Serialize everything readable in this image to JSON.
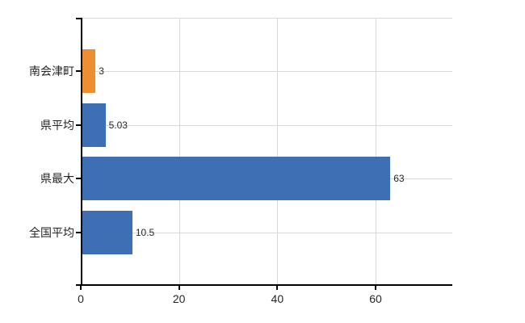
{
  "chart_data": {
    "type": "bar",
    "orientation": "horizontal",
    "title": "",
    "xlabel": "",
    "ylabel": "",
    "categories": [
      "南会津町",
      "県平均",
      "県最大",
      "全国平均"
    ],
    "values": [
      3,
      5.03,
      63,
      10.5
    ],
    "value_labels": [
      "3",
      "5.03",
      "63",
      "10.5"
    ],
    "series": [
      {
        "name": "",
        "values": [
          3,
          5.03,
          63,
          10.5
        ]
      }
    ],
    "bar_colors": [
      "#ED8E33",
      "#3E6EB4",
      "#3E6EB4",
      "#3E6EB4"
    ],
    "x_axis": {
      "min": 0,
      "max": 75.7,
      "ticks": [
        0,
        20,
        40,
        60
      ],
      "tick_labels": [
        "0",
        "20",
        "40",
        "60"
      ]
    },
    "grid": "on",
    "legend": "none",
    "colors": {
      "bar_blue": "#3E6EB4",
      "bar_orange": "#ED8E33",
      "gridline": "#d9d9d9",
      "axis": "#000000",
      "text": "#262626",
      "background": "#ffffff"
    }
  }
}
